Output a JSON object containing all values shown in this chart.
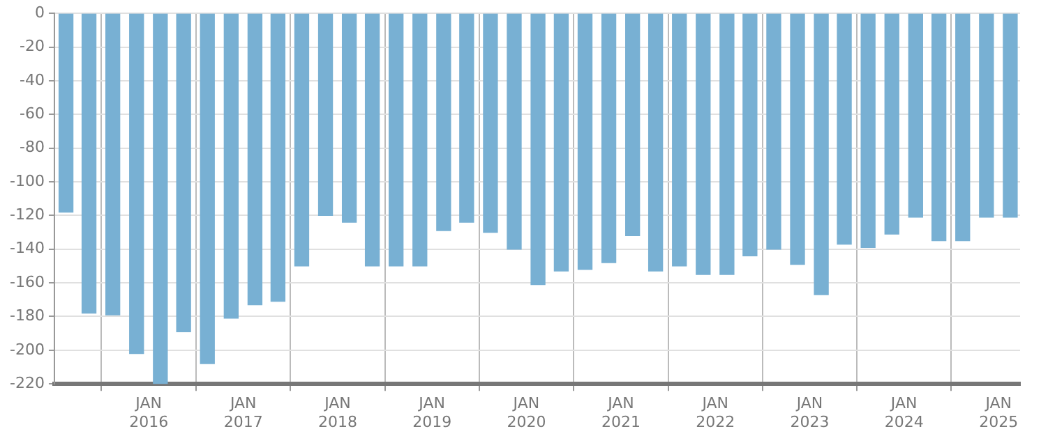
{
  "chart_data": {
    "type": "bar",
    "color": "#78b0d3",
    "x": [
      "2015-02-15",
      "2015-05-15",
      "2015-08-15",
      "2015-11-15",
      "2016-02-15",
      "2016-05-15",
      "2016-08-15",
      "2016-11-15",
      "2017-02-15",
      "2017-05-15",
      "2017-08-15",
      "2017-11-15",
      "2018-02-15",
      "2018-05-15",
      "2018-08-15",
      "2018-11-15",
      "2019-02-15",
      "2019-05-15",
      "2019-08-15",
      "2019-11-15",
      "2020-02-15",
      "2020-05-15",
      "2020-08-15",
      "2020-11-15",
      "2021-02-15",
      "2021-05-15",
      "2021-08-15",
      "2021-11-15",
      "2022-02-15",
      "2022-05-15",
      "2022-08-15",
      "2022-11-15",
      "2023-02-15",
      "2023-05-15",
      "2023-08-15",
      "2023-11-15",
      "2024-02-15",
      "2024-05-15",
      "2024-08-15",
      "2024-11-15",
      "2025-02-15"
    ],
    "values": [
      -118,
      -178,
      -179,
      -202,
      -220,
      -189,
      -208,
      -181,
      -173,
      -171,
      -150,
      -120,
      -124,
      -150,
      -150,
      -150,
      -129,
      -124,
      -130,
      -140,
      -161,
      -153,
      -152,
      -148,
      -132,
      -153,
      -150,
      -155,
      -155,
      -144,
      -140,
      -149,
      -167,
      -137,
      -139,
      -131,
      -121,
      -135,
      -135,
      -121,
      -121
    ],
    "xlim": [
      "2015-01-01",
      "2025-03-25"
    ],
    "xticks": [
      {
        "value": "2016-01-01",
        "label": "JAN 2016"
      },
      {
        "value": "2017-01-01",
        "label": "JAN 2017"
      },
      {
        "value": "2018-01-01",
        "label": "JAN 2018"
      },
      {
        "value": "2019-01-01",
        "label": "JAN 2019"
      },
      {
        "value": "2020-01-01",
        "label": "JAN 2020"
      },
      {
        "value": "2021-01-01",
        "label": "JAN 2021"
      },
      {
        "value": "2022-01-01",
        "label": "JAN 2022"
      },
      {
        "value": "2023-01-01",
        "label": "JAN 2023"
      },
      {
        "value": "2024-01-01",
        "label": "JAN 2024"
      },
      {
        "value": "2025-01-01",
        "label": "JAN 2025"
      }
    ],
    "ylim": [
      -220,
      0
    ],
    "yticks": [
      -220,
      -200,
      -180,
      -160,
      -140,
      -120,
      -100,
      -80,
      -60,
      -40,
      -20,
      0
    ],
    "grid": true
  }
}
